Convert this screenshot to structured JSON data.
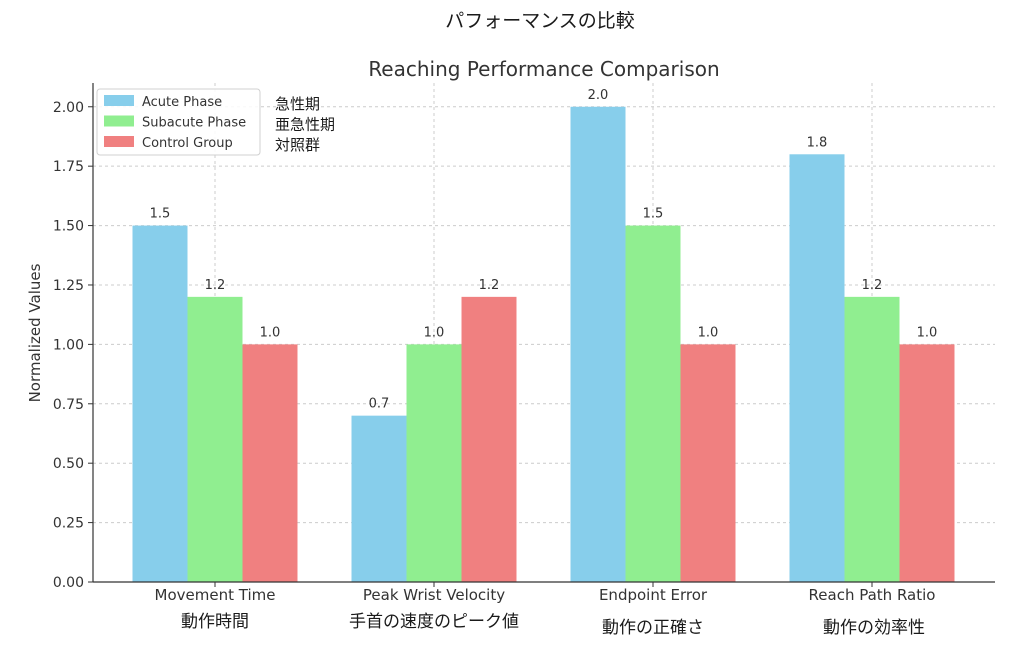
{
  "page_title": "パフォーマンスの比較",
  "chart_data": {
    "type": "bar",
    "title": "Reaching Performance Comparison",
    "xlabel": "",
    "ylabel": "Normalized Values",
    "ylim": [
      0,
      2.1
    ],
    "yticks": [
      "0.00",
      "0.25",
      "0.50",
      "0.75",
      "1.00",
      "1.25",
      "1.50",
      "1.75",
      "2.00"
    ],
    "ytick_values": [
      0,
      0.25,
      0.5,
      0.75,
      1.0,
      1.25,
      1.5,
      1.75,
      2.0
    ],
    "grid": true,
    "legend_position": "top-left",
    "categories": [
      "Movement Time",
      "Peak Wrist Velocity",
      "Endpoint Error",
      "Reach Path Ratio"
    ],
    "categories_ja": [
      "動作時間",
      "手首の速度のピーク値",
      "動作の正確さ",
      "動作の効率性"
    ],
    "series": [
      {
        "name": "Acute Phase",
        "name_ja": "急性期",
        "color": "#87ceeb",
        "values": [
          1.5,
          0.7,
          2.0,
          1.8
        ],
        "labels": [
          "1.5",
          "0.7",
          "2.0",
          "1.8"
        ]
      },
      {
        "name": "Subacute Phase",
        "name_ja": "亜急性期",
        "color": "#90ee90",
        "values": [
          1.2,
          1.0,
          1.5,
          1.2
        ],
        "labels": [
          "1.2",
          "1.0",
          "1.5",
          "1.2"
        ]
      },
      {
        "name": "Control Group",
        "name_ja": "対照群",
        "color": "#f08080",
        "values": [
          1.0,
          1.2,
          1.0,
          1.0
        ],
        "labels": [
          "1.0",
          "1.2",
          "1.0",
          "1.0"
        ]
      }
    ]
  }
}
